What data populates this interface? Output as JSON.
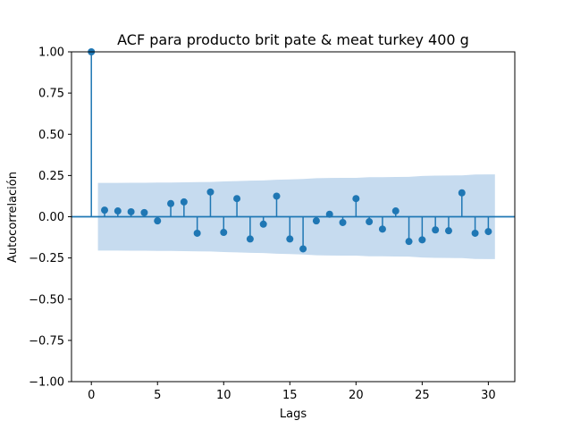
{
  "chart_data": {
    "type": "scatter",
    "subtype": "stem",
    "title": "ACF para producto brit pate & meat turkey 400 g",
    "xlabel": "Lags",
    "ylabel": "Autocorrelación",
    "xlim": [
      -1.5,
      32
    ],
    "ylim": [
      -1.0,
      1.0
    ],
    "x_ticks": [
      0,
      5,
      10,
      15,
      20,
      25,
      30
    ],
    "x_tick_labels": [
      "0",
      "5",
      "10",
      "15",
      "20",
      "25",
      "30"
    ],
    "y_ticks": [
      -1.0,
      -0.75,
      -0.5,
      -0.25,
      0.0,
      0.25,
      0.5,
      0.75,
      1.0
    ],
    "y_tick_labels": [
      "−1.00",
      "−0.75",
      "−0.50",
      "−0.25",
      "0.00",
      "0.25",
      "0.50",
      "0.75",
      "1.00"
    ],
    "grid": false,
    "color": "#1f77b4",
    "band_color": "#c6dbef",
    "series": [
      {
        "x": [
          0,
          1,
          2,
          3,
          4,
          5,
          6,
          7,
          8,
          9,
          10,
          11,
          12,
          13,
          14,
          15,
          16,
          17,
          18,
          19,
          20,
          21,
          22,
          23,
          24,
          25,
          26,
          27,
          28,
          29,
          30
        ],
        "values": [
          1.0,
          0.04,
          0.035,
          0.03,
          0.025,
          -0.025,
          0.08,
          0.09,
          -0.1,
          0.15,
          -0.095,
          0.11,
          -0.135,
          -0.045,
          0.125,
          -0.135,
          -0.195,
          -0.025,
          0.015,
          -0.035,
          0.11,
          -0.03,
          -0.075,
          0.035,
          -0.15,
          -0.14,
          -0.08,
          -0.085,
          0.145,
          -0.1,
          -0.09
        ]
      }
    ],
    "confidence_band": {
      "x": [
        0.5,
        1,
        2,
        3,
        4,
        5,
        6,
        7,
        8,
        9,
        10,
        11,
        12,
        13,
        14,
        15,
        16,
        17,
        18,
        19,
        20,
        21,
        22,
        23,
        24,
        25,
        26,
        27,
        28,
        29,
        30,
        30.5
      ],
      "upper": [
        0.205,
        0.205,
        0.205,
        0.206,
        0.206,
        0.207,
        0.207,
        0.209,
        0.21,
        0.211,
        0.214,
        0.216,
        0.219,
        0.22,
        0.224,
        0.226,
        0.229,
        0.234,
        0.235,
        0.236,
        0.236,
        0.24,
        0.24,
        0.241,
        0.242,
        0.247,
        0.249,
        0.25,
        0.251,
        0.256,
        0.257,
        0.257
      ]
    }
  }
}
